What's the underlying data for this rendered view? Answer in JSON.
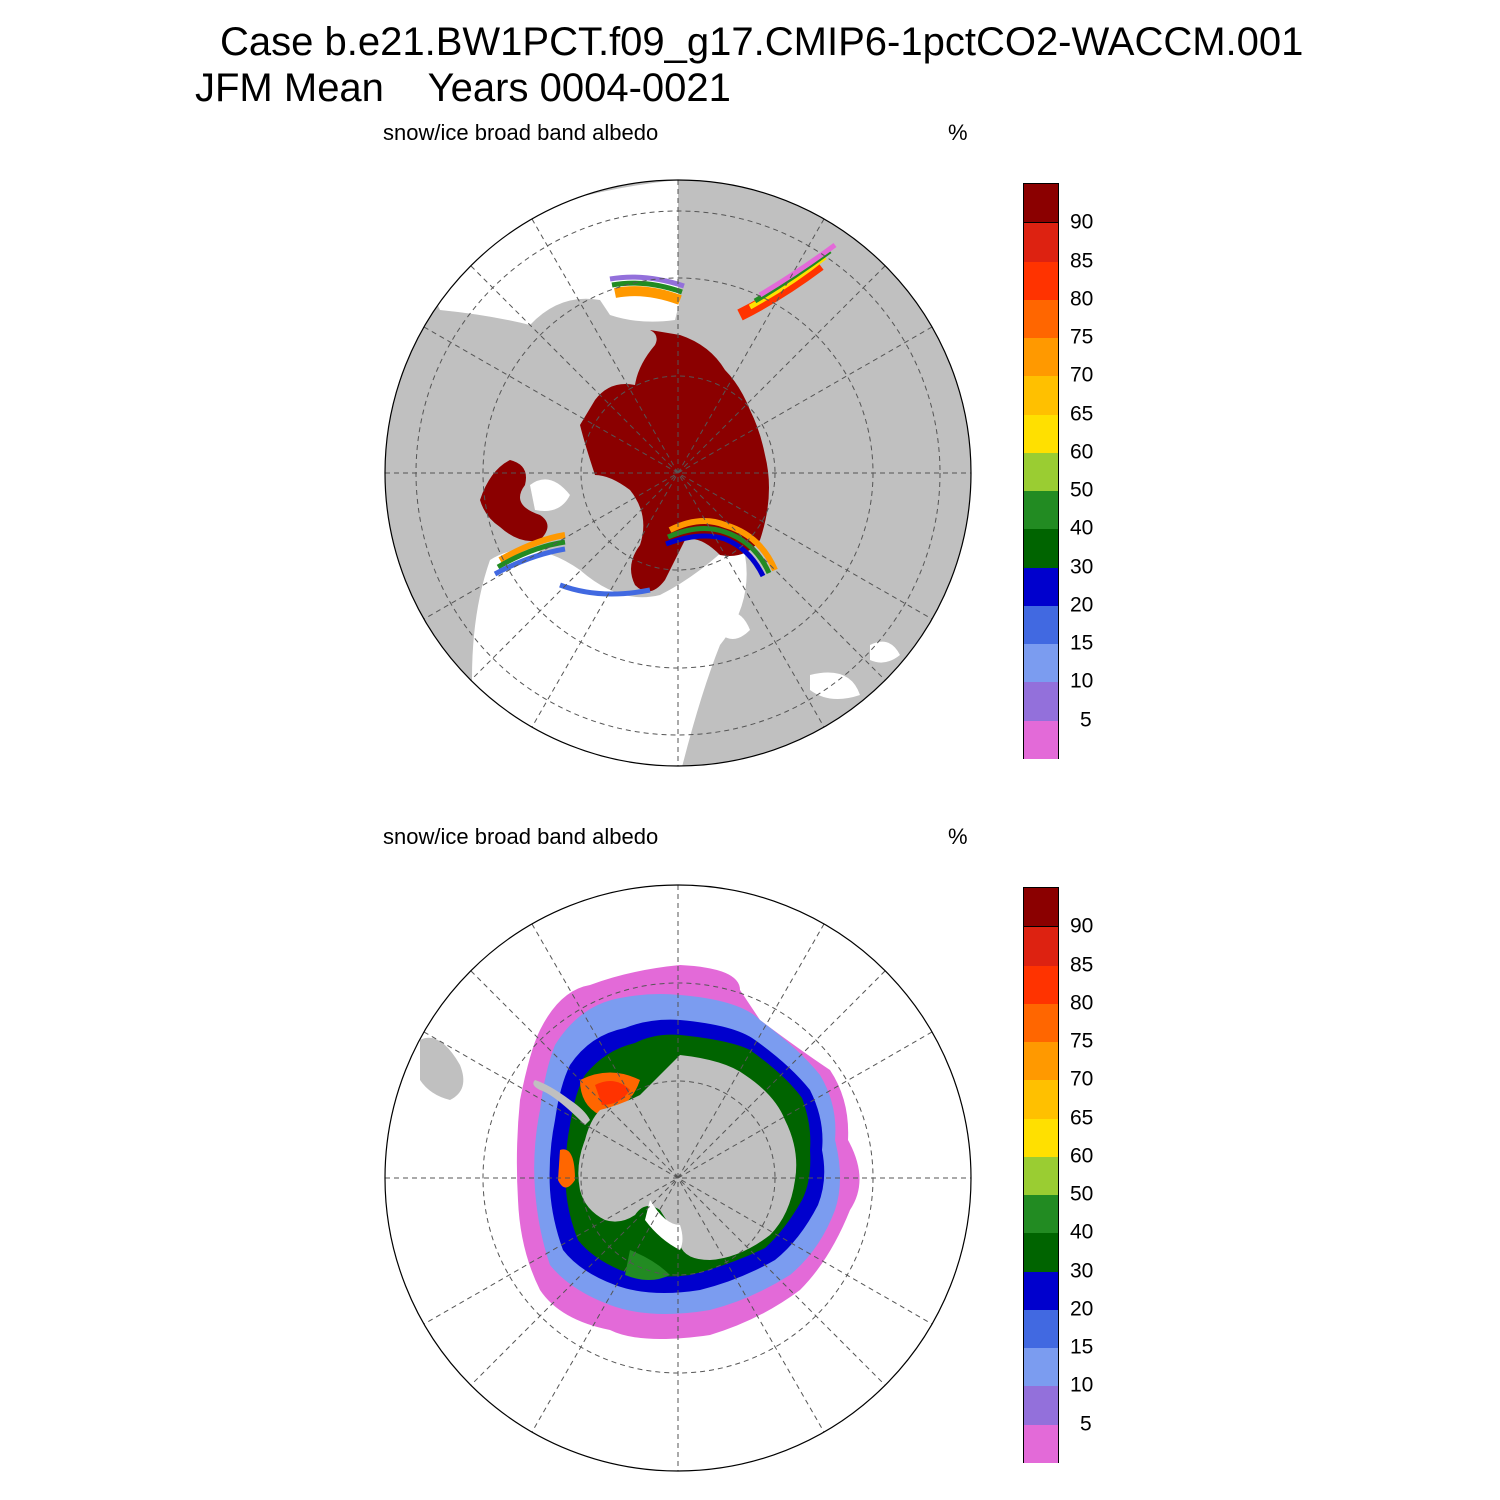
{
  "title": {
    "line1": "Case b.e21.BW1PCT.f09_g17.CMIP6-1pctCO2-WACCM.001",
    "line2": "JFM Mean    Years 0004-0021"
  },
  "panels": [
    {
      "variable": "snow/ice broad band albedo",
      "unit": "%",
      "hemisphere": "north"
    },
    {
      "variable": "snow/ice broad band albedo",
      "unit": "%",
      "hemisphere": "south"
    }
  ],
  "colorbar": {
    "colors": [
      "#e36ad8",
      "#9370db",
      "#7b9cf0",
      "#4169e1",
      "#0000cd",
      "#006400",
      "#228b22",
      "#9acd32",
      "#ffe000",
      "#ffc000",
      "#ff9900",
      "#ff6600",
      "#ff3300",
      "#dd2211",
      "#8b0000"
    ],
    "ticks": [
      "5",
      "10",
      "15",
      "20",
      "30",
      "40",
      "50",
      "60",
      "65",
      "70",
      "75",
      "80",
      "85",
      "90"
    ]
  },
  "map_colors": {
    "land": "#c0c0c0",
    "ocean": "#ffffff",
    "grid": "#555555"
  }
}
